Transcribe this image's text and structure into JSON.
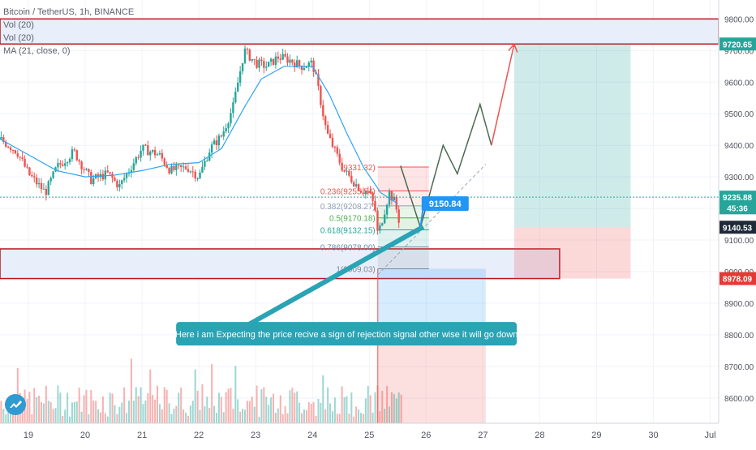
{
  "legend": {
    "symbol": "Bitcoin / TetherUS, 1h, BINANCE",
    "vol1": "Vol (20)",
    "vol2": "Vol (20)",
    "ma": "MA (21, close, 0)"
  },
  "colors": {
    "up": "#26a69a",
    "down": "#ef5350",
    "ma": "#2ea3f2",
    "zone_fill": "#e8eefa",
    "zone_border": "#c1121f",
    "annotation_bg": "#2aa3b5",
    "marker_bg": "#2196f3",
    "forecast_path": "#4a6a4f",
    "forecast_up": "#ef5350",
    "price_label_green": "#26a69a",
    "price_label_red": "#e53935",
    "price_label_dark": "#1e2a38"
  },
  "annotation": {
    "text": "Here i am Expecting the price recive a sign of rejection signal other wise it will go down"
  },
  "marker_label": "9150.84",
  "price_labels": [
    {
      "value": "9720.65",
      "kind": "zone",
      "price": 9720.65
    },
    {
      "value": "9235.88",
      "kind": "current",
      "price": 9235.88
    },
    {
      "value": "45:36",
      "kind": "countdown",
      "price": 9202
    },
    {
      "value": "9140.53",
      "kind": "last",
      "price": 9140.53
    },
    {
      "value": "8978.09",
      "kind": "zone",
      "price": 8978.09
    }
  ],
  "chart_data": {
    "type": "candlestick",
    "title": "Bitcoin / TetherUS, 1h, BINANCE",
    "interval": "1h",
    "exchange": "BINANCE",
    "ylim": [
      8520,
      9860
    ],
    "yticks": [
      "9800.00",
      "9700.00",
      "9600.00",
      "9500.00",
      "9400.00",
      "9300.00",
      "9200.00",
      "9100.00",
      "9000.00",
      "8900.00",
      "8800.00",
      "8700.00",
      "8600.00"
    ],
    "ytick_values": [
      9800,
      9700,
      9600,
      9500,
      9400,
      9300,
      9200,
      9100,
      9000,
      8900,
      8800,
      8700,
      8600
    ],
    "xticks": [
      "19",
      "20",
      "21",
      "22",
      "23",
      "24",
      "25",
      "26",
      "27",
      "28",
      "29",
      "30",
      "Jul"
    ],
    "xtick_days": [
      19,
      20,
      21,
      22,
      23,
      24,
      25,
      26,
      27,
      28,
      29,
      30,
      31
    ],
    "x_range_days": [
      18.5,
      31.15
    ],
    "price_path": [
      [
        18.5,
        9420
      ],
      [
        18.8,
        9380
      ],
      [
        19.0,
        9310
      ],
      [
        19.3,
        9250
      ],
      [
        19.5,
        9330
      ],
      [
        19.8,
        9380
      ],
      [
        20.1,
        9290
      ],
      [
        20.4,
        9310
      ],
      [
        20.6,
        9270
      ],
      [
        20.8,
        9330
      ],
      [
        21.0,
        9390
      ],
      [
        21.3,
        9370
      ],
      [
        21.5,
        9320
      ],
      [
        21.8,
        9330
      ],
      [
        22.0,
        9300
      ],
      [
        22.2,
        9390
      ],
      [
        22.4,
        9430
      ],
      [
        22.6,
        9520
      ],
      [
        22.8,
        9700
      ],
      [
        23.0,
        9660
      ],
      [
        23.2,
        9650
      ],
      [
        23.4,
        9680
      ],
      [
        23.6,
        9670
      ],
      [
        23.8,
        9650
      ],
      [
        24.0,
        9660
      ],
      [
        24.1,
        9580
      ],
      [
        24.25,
        9440
      ],
      [
        24.4,
        9380
      ],
      [
        24.55,
        9320
      ],
      [
        24.7,
        9290
      ],
      [
        24.85,
        9260
      ],
      [
        25.0,
        9250
      ],
      [
        25.1,
        9200
      ],
      [
        25.15,
        9115
      ],
      [
        25.25,
        9180
      ],
      [
        25.35,
        9250
      ],
      [
        25.45,
        9220
      ],
      [
        25.55,
        9140
      ]
    ],
    "ma": [
      [
        18.5,
        9420
      ],
      [
        19.0,
        9370
      ],
      [
        19.5,
        9320
      ],
      [
        20.0,
        9300
      ],
      [
        20.5,
        9305
      ],
      [
        21.0,
        9320
      ],
      [
        21.5,
        9340
      ],
      [
        22.0,
        9345
      ],
      [
        22.4,
        9390
      ],
      [
        22.8,
        9520
      ],
      [
        23.1,
        9610
      ],
      [
        23.5,
        9650
      ],
      [
        24.0,
        9650
      ],
      [
        24.3,
        9560
      ],
      [
        24.6,
        9440
      ],
      [
        24.9,
        9330
      ],
      [
        25.2,
        9250
      ],
      [
        25.5,
        9215
      ]
    ],
    "fibonacci": [
      {
        "label": "(9331.32)",
        "price": 9331.32
      },
      {
        "label": "0.236(9255.54)",
        "price": 9255.54
      },
      {
        "label": "0.382(9208.27)",
        "price": 9208.27
      },
      {
        "label": "0.5(9170.18)",
        "price": 9170.18
      },
      {
        "label": "0.618(9132.15)",
        "price": 9132.15
      },
      {
        "label": "0.786(9078.00)",
        "price": 9078.0
      },
      {
        "label": "1(9009.03)",
        "price": 9009.03
      }
    ],
    "zones": [
      {
        "name": "resistance",
        "from": 9720.65,
        "to": 9800
      },
      {
        "name": "support",
        "from": 8978.09,
        "to": 9072
      }
    ],
    "long_position": {
      "entry": 9140.53,
      "target": 9720.65,
      "stop": 8978.09,
      "start_day": 27.55,
      "end_day": 29.6
    },
    "forecast_path": [
      [
        25.55,
        9335
      ],
      [
        25.9,
        9140
      ],
      [
        26.3,
        9400
      ],
      [
        26.55,
        9310
      ],
      [
        26.95,
        9530
      ],
      [
        27.15,
        9400
      ]
    ],
    "forecast_up": [
      [
        27.15,
        9400
      ],
      [
        27.55,
        9720
      ]
    ]
  }
}
